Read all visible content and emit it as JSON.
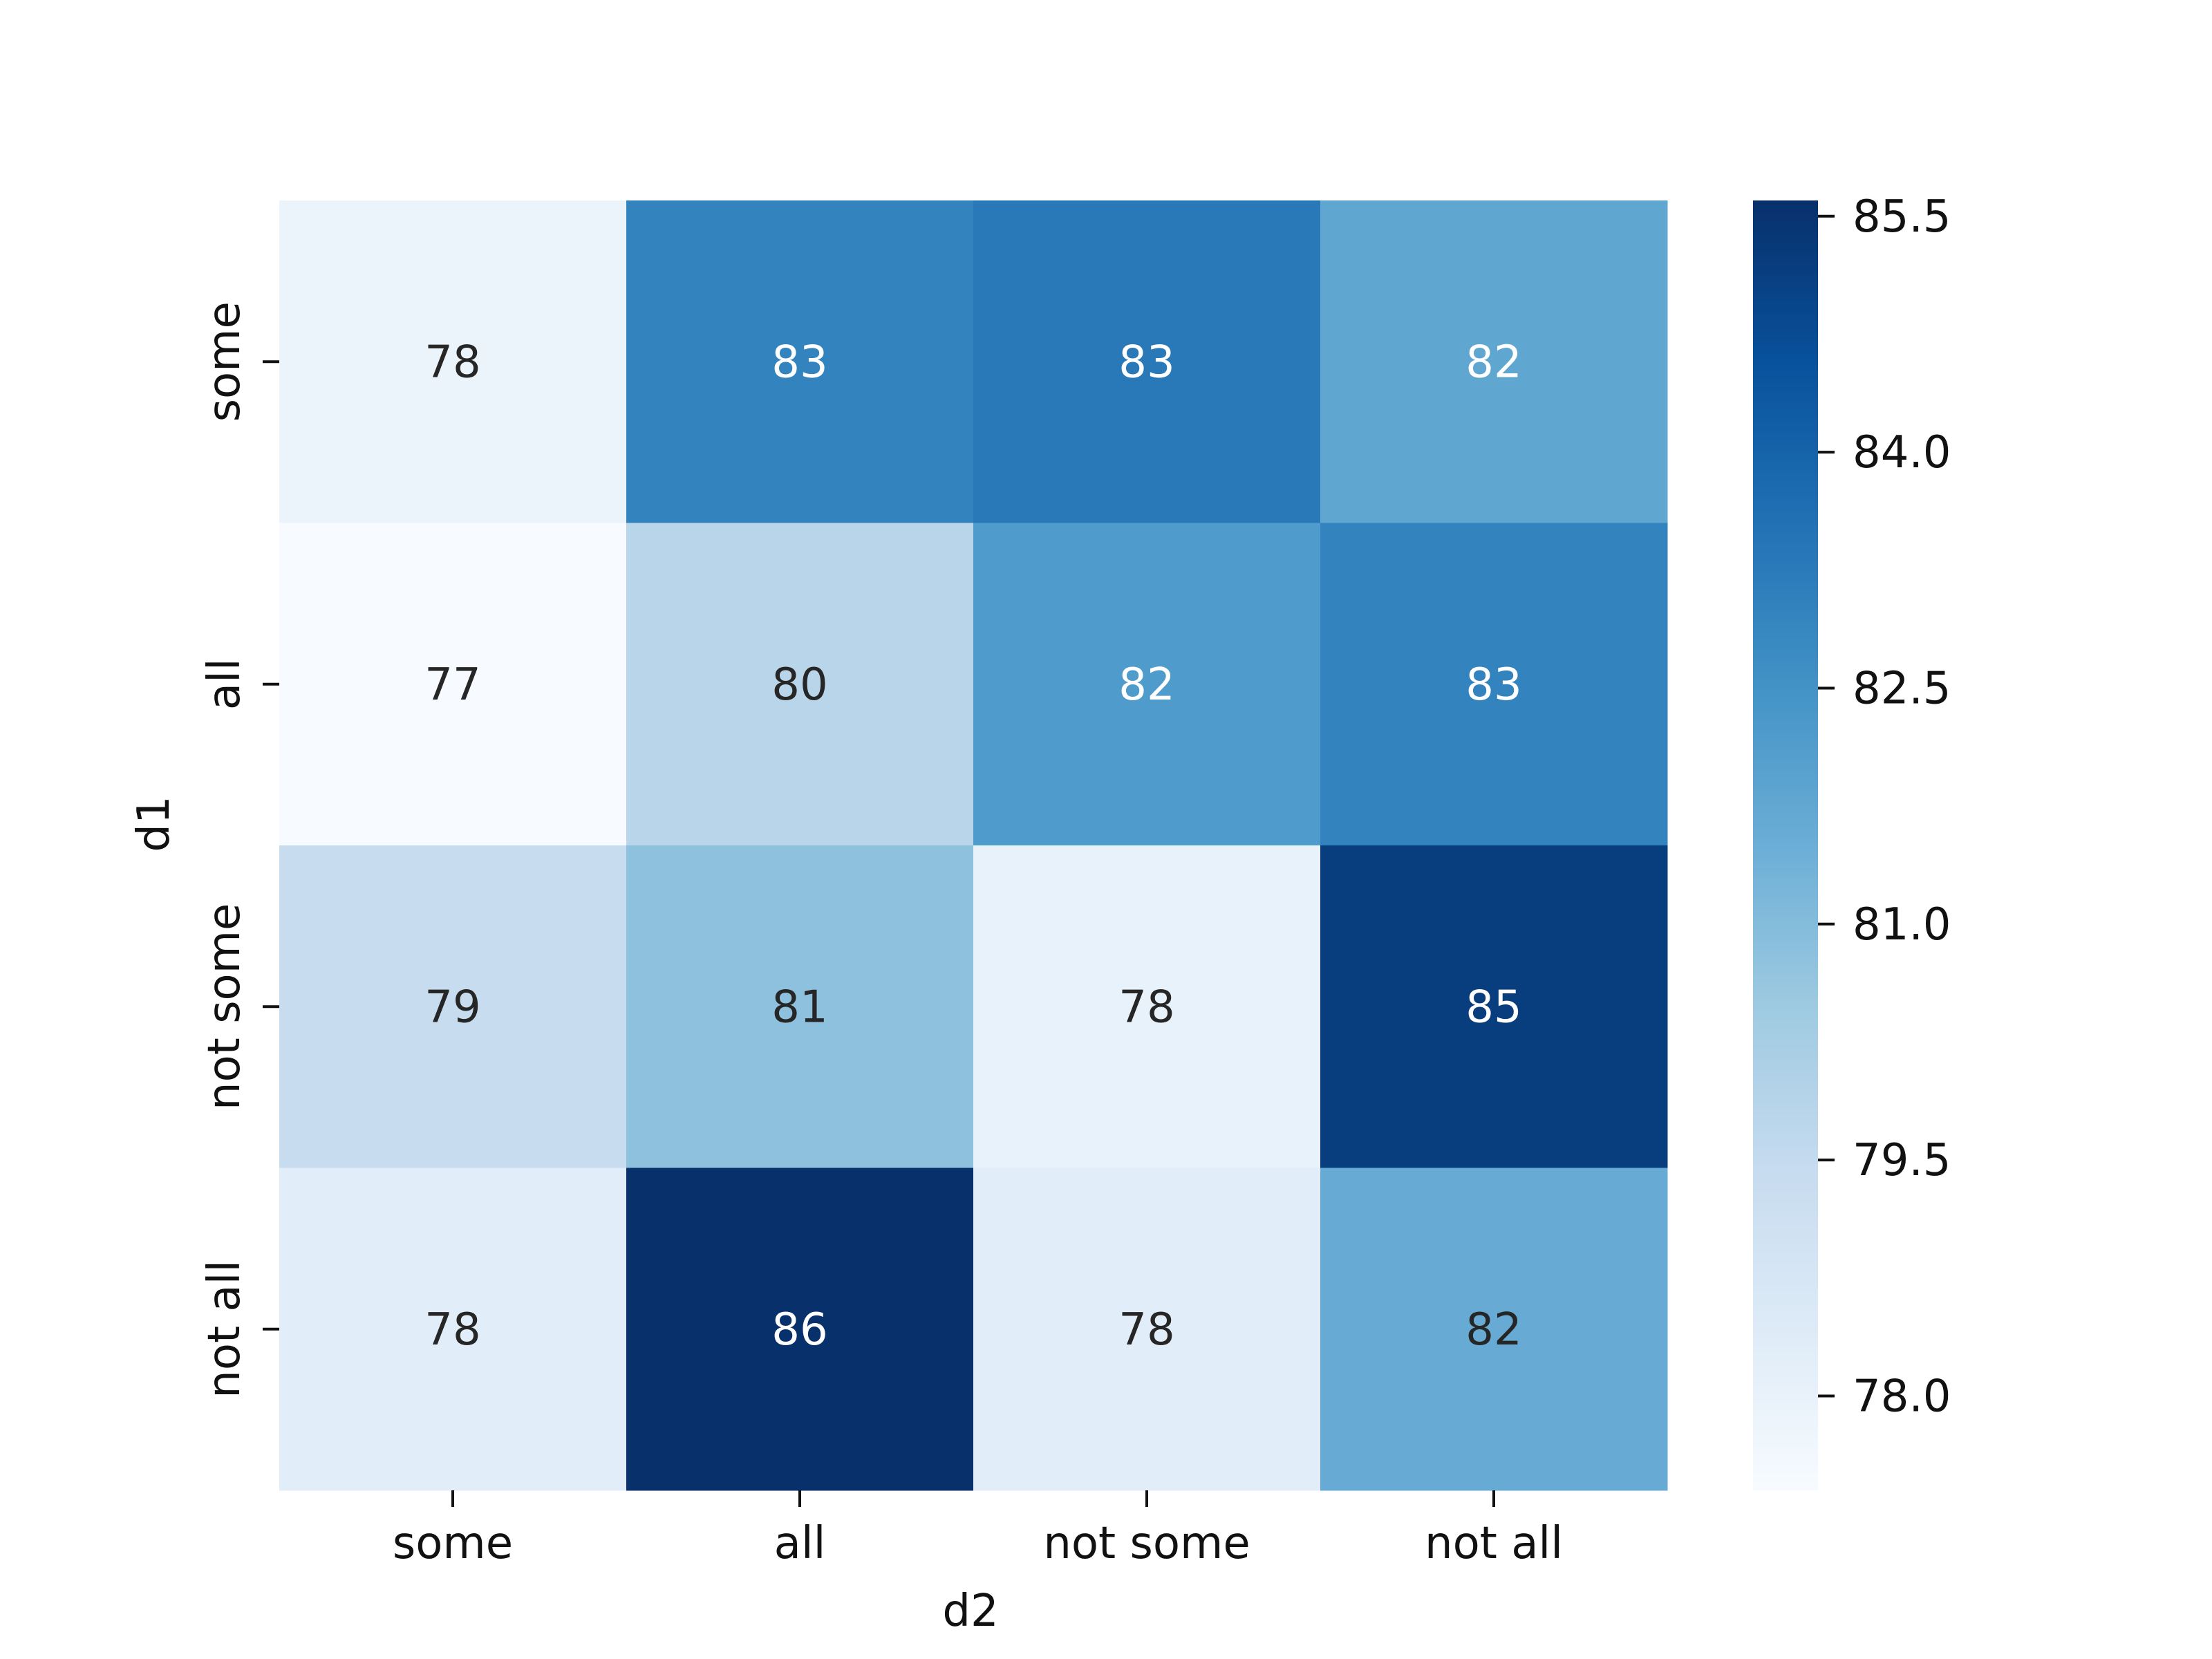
{
  "chart_data": {
    "type": "heatmap",
    "x_categories": [
      "some",
      "all",
      "not some",
      "not all"
    ],
    "y_categories": [
      "some",
      "all",
      "not some",
      "not all"
    ],
    "values": [
      [
        77.9,
        83.0,
        83.3,
        81.8
      ],
      [
        77.4,
        79.8,
        82.2,
        83.0
      ],
      [
        79.4,
        80.8,
        78.0,
        85.2
      ],
      [
        78.3,
        85.8,
        78.3,
        81.6
      ]
    ],
    "cell_labels": [
      [
        "78",
        "83",
        "83",
        "82"
      ],
      [
        "77",
        "80",
        "82",
        "83"
      ],
      [
        "79",
        "81",
        "78",
        "85"
      ],
      [
        "78",
        "86",
        "78",
        "82"
      ]
    ],
    "xlabel": "d2",
    "ylabel": "d1",
    "colormap": "Blues",
    "colorbar": {
      "min": 77.4,
      "max": 85.6,
      "ticks": [
        78.0,
        79.5,
        81.0,
        82.5,
        84.0,
        85.5
      ],
      "tick_labels": [
        "78.0",
        "79.5",
        "81.0",
        "82.5",
        "84.0",
        "85.5"
      ]
    },
    "colors": {
      "text_dark": "#262626",
      "text_light": "#ffffff",
      "low": "#f7fbff",
      "high": "#08306b"
    }
  }
}
